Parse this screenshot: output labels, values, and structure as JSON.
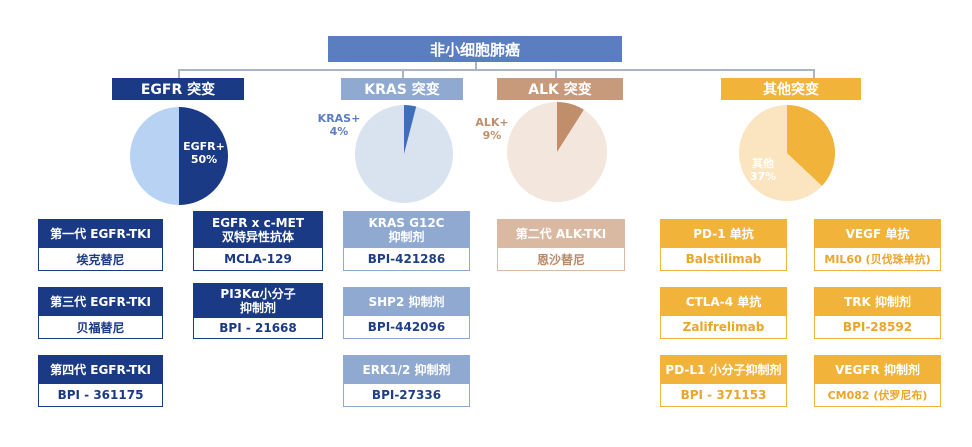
{
  "title": "非小细胞肺癌",
  "categories": [
    {
      "label": "EGFR 突变",
      "color": "#1a3a86",
      "pie": {
        "percent": 50,
        "label_name": "EGFR+",
        "label_pct": "50%",
        "slice_color": "#1a3a86",
        "rest_color": "#b8d2f3"
      }
    },
    {
      "label": "KRAS 突变",
      "color": "#8fa9d1",
      "pie": {
        "percent": 4,
        "label_name": "KRAS+",
        "label_pct": "4%",
        "slice_color": "#3f6fb8",
        "rest_color": "#d9e3f0"
      }
    },
    {
      "label": "ALK 突变",
      "color": "#c79a7c",
      "pie": {
        "percent": 9,
        "label_name": "ALK+",
        "label_pct": "9%",
        "slice_color": "#c08e6b",
        "rest_color": "#f3e6dc"
      }
    },
    {
      "label": "其他突变",
      "color": "#f2b33a",
      "pie": {
        "percent": 37,
        "label_name": "其他",
        "label_pct": "37%",
        "slice_color": "#f2b33a",
        "rest_color": "#fbe4c0"
      }
    }
  ],
  "drugs": {
    "egfr_1": {
      "top": "第一代 EGFR-TKI",
      "bottom": "埃克替尼"
    },
    "egfr_3": {
      "top": "第三代 EGFR-TKI",
      "bottom": "贝福替尼"
    },
    "egfr_4": {
      "top": "第四代 EGFR-TKI",
      "bottom": "BPI - 361175"
    },
    "egfr_cmet": {
      "top": "EGFR x c-MET\n双特异性抗体",
      "bottom": "MCLA-129"
    },
    "pi3k": {
      "top": "PI3Kα小分子\n抑制剂",
      "bottom": "BPI - 21668"
    },
    "kras_g12c": {
      "top": "KRAS G12C\n抑制剂",
      "bottom": "BPI-421286"
    },
    "shp2": {
      "top": "SHP2 抑制剂",
      "bottom": "BPI-442096"
    },
    "erk": {
      "top": "ERK1/2 抑制剂",
      "bottom": "BPI-27336"
    },
    "alk2": {
      "top": "第二代 ALK-TKI",
      "bottom": "恩沙替尼"
    },
    "pd1": {
      "top": "PD-1 单抗",
      "bottom": "Balstilimab"
    },
    "ctla4": {
      "top": "CTLA-4 单抗",
      "bottom": "Zalifrelimab"
    },
    "pdl1": {
      "top": "PD-L1 小分子抑制剂",
      "bottom": "BPI - 371153"
    },
    "vegf": {
      "top": "VEGF 单抗",
      "bottom": "MIL60 (贝伐珠单抗)"
    },
    "trk": {
      "top": "TRK 抑制剂",
      "bottom": "BPI-28592"
    },
    "vegfr": {
      "top": "VEGFR 抑制剂",
      "bottom": "CM082 (伏罗尼布)"
    }
  }
}
